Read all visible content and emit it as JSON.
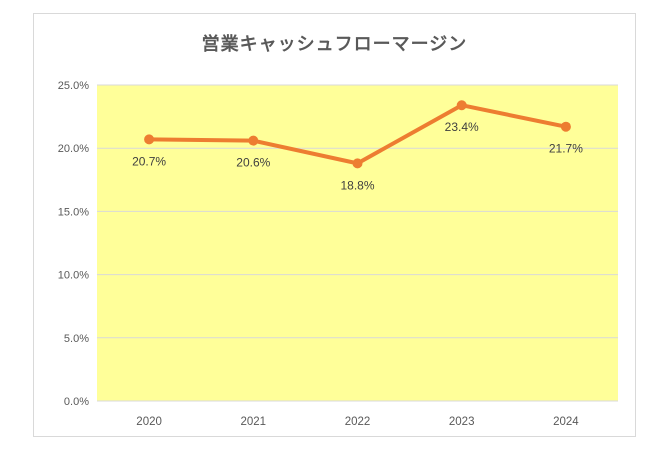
{
  "chart_data": {
    "type": "line",
    "title": "営業キャッシュフローマージン",
    "categories": [
      "2020",
      "2021",
      "2022",
      "2023",
      "2024"
    ],
    "series": [
      {
        "name": "営業キャッシュフローマージン",
        "values": [
          20.7,
          20.6,
          18.8,
          23.4,
          21.7
        ]
      }
    ],
    "data_labels": [
      "20.7%",
      "20.6%",
      "18.8%",
      "23.4%",
      "21.7%"
    ],
    "xlabel": "",
    "ylabel": "",
    "ylim": [
      0,
      25
    ],
    "ytick_step": 5,
    "yticks": [
      "0.0%",
      "5.0%",
      "10.0%",
      "15.0%",
      "20.0%",
      "25.0%"
    ],
    "grid": true,
    "legend_position": "none",
    "colors": {
      "line": "#ED7D31",
      "marker": "#ED7D31",
      "plot_background": "#FFFF99",
      "gridline": "#D9D9D9",
      "chart_border": "#D9D9D9",
      "title_text": "#595959",
      "axis_text": "#595959",
      "label_text": "#404040"
    }
  }
}
